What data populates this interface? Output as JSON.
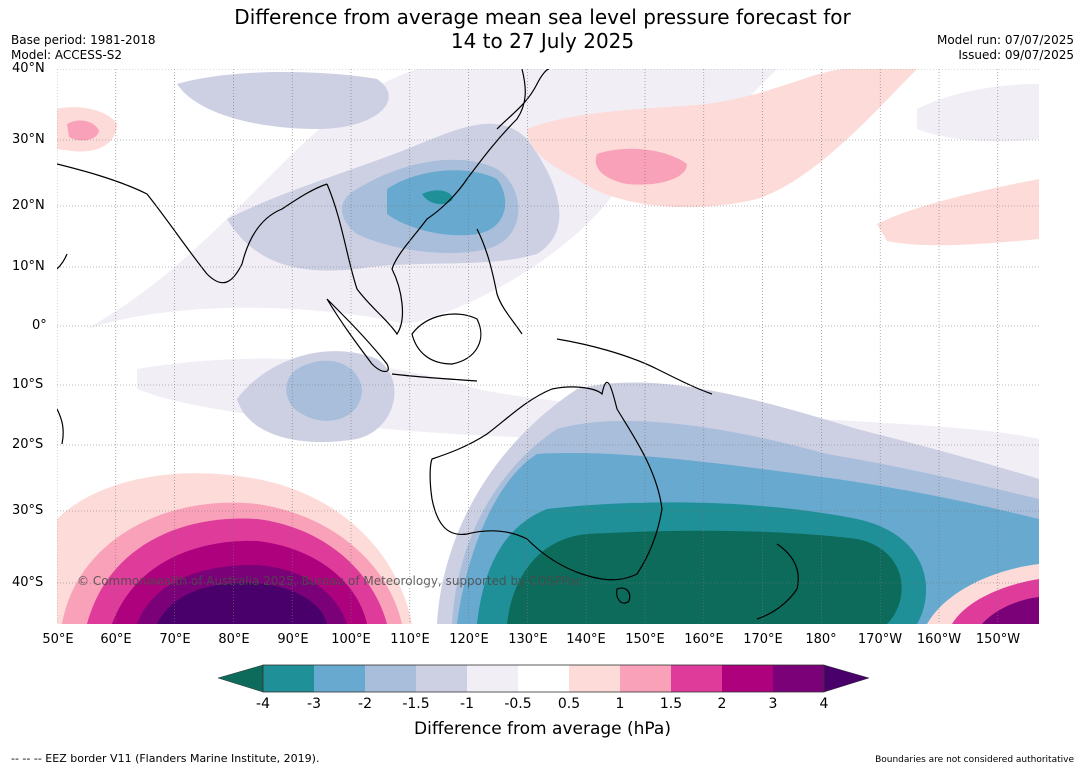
{
  "title": {
    "line1": "Difference from average mean sea level pressure forecast for",
    "line2": "14 to 27 July 2025"
  },
  "meta_left": {
    "base_period": "Base period: 1981-2018",
    "model": "Model: ACCESS-S2"
  },
  "meta_right": {
    "model_run": "Model run: 07/07/2025",
    "issued": "Issued: 09/07/2025"
  },
  "map": {
    "lat_labels": [
      "40°N",
      "30°N",
      "20°N",
      "10°N",
      "0°",
      "10°S",
      "20°S",
      "30°S",
      "40°S"
    ],
    "lon_labels": [
      "50°E",
      "60°E",
      "70°E",
      "80°E",
      "90°E",
      "100°E",
      "110°E",
      "120°E",
      "130°E",
      "140°E",
      "150°E",
      "160°E",
      "170°E",
      "180°",
      "170°W",
      "160°W",
      "150°W"
    ],
    "copyright": "© Commonwealth of Australia 2025, Bureau of Meteorology, supported by COSPPac"
  },
  "colorbar": {
    "ticks": [
      "-4",
      "-3",
      "-2",
      "-1.5",
      "-1",
      "-0.5",
      "0.5",
      "1",
      "1.5",
      "2",
      "3",
      "4"
    ],
    "colors": {
      "below_-4": "#0d6b5b",
      "-4_-3": "#1f9097",
      "-3_-2": "#67a9cf",
      "-2_-1.5": "#a9bedb",
      "-1.5_-1": "#cdd0e3",
      "-1_-0.5": "#f1eef6",
      "-0.5_0.5": "#ffffff",
      "0.5_1": "#fddbd9",
      "1_1.5": "#f8a1b9",
      "1.5_2": "#df3b9b",
      "2_3": "#ad017e",
      "3_4": "#7a0177",
      "above_4": "#49006a"
    },
    "title": "Difference from average (hPa)"
  },
  "footer": {
    "left": "--  --  -- EEZ border V11 (Flanders Marine Institute, 2019).",
    "right": "Boundaries are not considered authoritative"
  }
}
